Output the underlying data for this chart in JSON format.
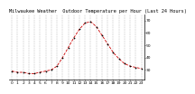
{
  "title": "Milwaukee Weather  Outdoor Temperature per Hour (Last 24 Hours)",
  "hours": [
    0,
    1,
    2,
    3,
    4,
    5,
    6,
    7,
    8,
    9,
    10,
    11,
    12,
    13,
    14,
    15,
    16,
    17,
    18,
    19,
    20,
    21,
    22,
    23
  ],
  "temps": [
    29,
    28,
    28,
    27,
    27,
    28,
    29,
    30,
    33,
    40,
    48,
    56,
    63,
    68,
    69,
    65,
    58,
    51,
    44,
    39,
    35,
    33,
    32,
    31
  ],
  "line_color": "#cc0000",
  "marker_color": "#000000",
  "bg_color": "#ffffff",
  "grid_color": "#999999",
  "title_fontsize": 3.8,
  "tick_fontsize": 3.2,
  "ylim": [
    22,
    75
  ],
  "ytick_vals": [
    30,
    40,
    50,
    60,
    70
  ],
  "ytick_labels": [
    "30",
    "40",
    "50",
    "60",
    "70"
  ]
}
